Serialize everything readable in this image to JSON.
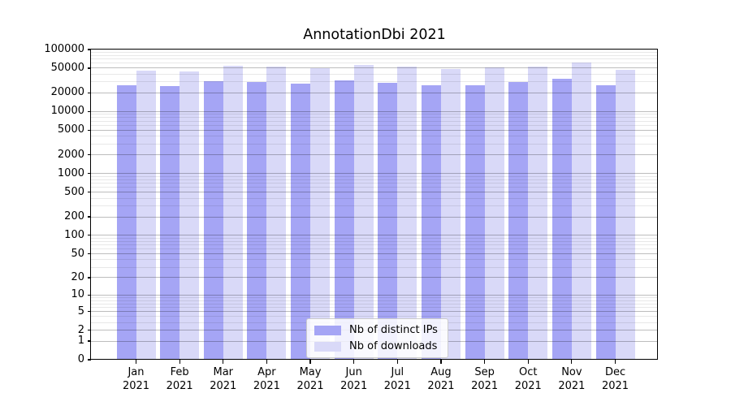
{
  "chart_data": {
    "type": "bar",
    "title": "AnnotationDbi 2021",
    "year": "2021",
    "categories": [
      "Jan",
      "Feb",
      "Mar",
      "Apr",
      "May",
      "Jun",
      "Jul",
      "Aug",
      "Sep",
      "Oct",
      "Nov",
      "Dec"
    ],
    "series": [
      {
        "name": "Nb of distinct IPs",
        "color": "#a5a5f5",
        "values": [
          26500,
          25500,
          31000,
          30100,
          27900,
          31700,
          28700,
          26500,
          26500,
          30100,
          34000,
          26500
        ]
      },
      {
        "name": "Nb of downloads",
        "color": "#d9d9f8",
        "values": [
          46000,
          44000,
          54000,
          53500,
          50000,
          57000,
          53500,
          48700,
          51000,
          53500,
          62000,
          47400
        ]
      }
    ],
    "xlabel": "",
    "ylabel": "",
    "yscale": "log1p",
    "ylim": [
      0,
      100000
    ],
    "yticks": [
      0,
      1,
      2,
      5,
      10,
      20,
      50,
      100,
      200,
      500,
      1000,
      2000,
      5000,
      10000,
      20000,
      50000,
      100000
    ],
    "grid": true,
    "legend_position": "lower center"
  }
}
